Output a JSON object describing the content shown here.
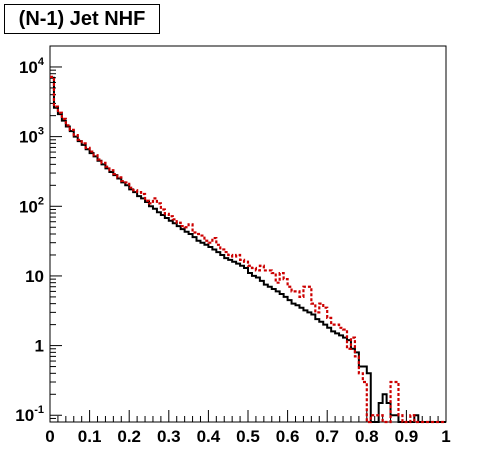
{
  "chart_data": {
    "type": "histogram",
    "title": "(N-1) Jet NHF",
    "xlabel": "",
    "ylabel": "",
    "xlim": [
      0,
      1
    ],
    "ylim": [
      0.08,
      20000
    ],
    "y_scale": "log",
    "grid": false,
    "x_ticks": [
      "0",
      "0.1",
      "0.2",
      "0.3",
      "0.4",
      "0.5",
      "0.6",
      "0.7",
      "0.8",
      "0.9",
      "1"
    ],
    "y_ticks": [
      {
        "value": 0.1,
        "base": "10",
        "exp": "-1"
      },
      {
        "value": 1,
        "base": "1",
        "exp": ""
      },
      {
        "value": 10,
        "base": "10",
        "exp": ""
      },
      {
        "value": 100,
        "base": "10",
        "exp": "2"
      },
      {
        "value": 1000,
        "base": "10",
        "exp": "3"
      },
      {
        "value": 10000,
        "base": "10",
        "exp": "4"
      }
    ],
    "bin_width": 0.01,
    "series": [
      {
        "style": "solid",
        "color": "#000000",
        "values": [
          7000,
          2600,
          2100,
          1700,
          1400,
          1200,
          1000,
          860,
          760,
          660,
          580,
          520,
          450,
          400,
          350,
          310,
          280,
          250,
          220,
          200,
          175,
          160,
          140,
          130,
          115,
          100,
          92,
          82,
          75,
          68,
          62,
          57,
          52,
          47,
          43,
          40,
          36,
          32,
          30,
          28,
          26,
          24,
          22,
          20,
          18,
          17,
          16,
          15,
          14,
          13,
          11,
          10,
          9.5,
          8.5,
          7.5,
          7,
          6.5,
          6,
          5.5,
          5,
          4.5,
          4,
          3.8,
          3.5,
          3.2,
          3,
          2.8,
          2.4,
          2.2,
          2,
          1.8,
          1.6,
          1.5,
          1.4,
          1.3,
          1.2,
          0.9,
          0.8,
          0.5,
          0.5,
          0.4,
          0,
          0,
          0.15,
          0.2,
          0.15,
          0.1,
          0.1,
          0,
          0,
          0,
          0,
          0.1,
          0,
          0,
          0,
          0,
          0,
          0,
          0
        ]
      },
      {
        "style": "dashed",
        "color": "#cc0000",
        "values": [
          7200,
          2700,
          2200,
          1800,
          1450,
          1250,
          1050,
          900,
          800,
          690,
          610,
          540,
          470,
          420,
          370,
          330,
          290,
          260,
          230,
          220,
          185,
          170,
          160,
          150,
          120,
          110,
          130,
          110,
          90,
          78,
          72,
          65,
          58,
          52,
          50,
          55,
          42,
          40,
          38,
          32,
          30,
          35,
          28,
          24,
          22,
          20,
          19,
          20,
          17,
          16,
          14,
          13,
          12,
          14,
          12,
          12,
          11,
          8,
          11,
          9,
          7,
          6,
          6,
          5,
          7,
          7,
          4,
          3,
          4,
          3.5,
          2.5,
          2,
          2,
          1.8,
          1.7,
          0.9,
          1.3,
          0.7,
          0.4,
          0.3,
          0,
          0.1,
          0.1,
          0.1,
          0,
          0,
          0.3,
          0.3,
          0.1,
          0,
          0,
          0.1,
          0,
          0,
          0,
          0,
          0,
          0,
          0,
          0
        ]
      }
    ]
  }
}
